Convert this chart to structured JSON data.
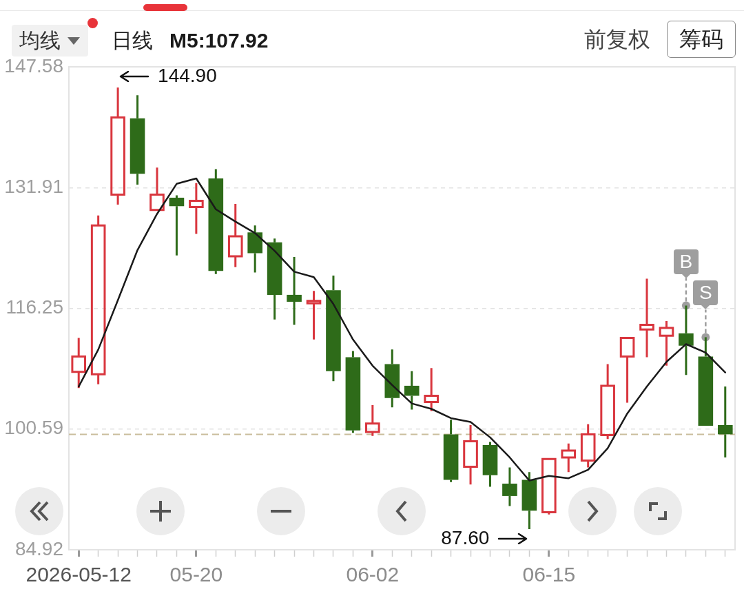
{
  "chart_data": {
    "type": "candlestick",
    "categories": [
      "2026-05-12",
      null,
      null,
      null,
      null,
      null,
      "05-20",
      null,
      null,
      null,
      null,
      null,
      null,
      null,
      null,
      "06-02",
      null,
      null,
      null,
      null,
      null,
      null,
      null,
      null,
      "06-15",
      null,
      null,
      null,
      null,
      null,
      null,
      null,
      null,
      null
    ],
    "ohlc": [
      [
        108.0,
        112.4,
        105.9,
        110.0
      ],
      [
        107.7,
        128.3,
        106.4,
        127.0
      ],
      [
        131.0,
        144.9,
        129.7,
        141.0
      ],
      [
        140.9,
        143.9,
        132.3,
        133.7
      ],
      [
        129.0,
        134.5,
        128.9,
        131.0
      ],
      [
        130.6,
        130.9,
        123.1,
        129.5
      ],
      [
        129.4,
        132.5,
        125.9,
        130.2
      ],
      [
        133.1,
        134.3,
        120.7,
        121.1
      ],
      [
        123.0,
        129.8,
        121.6,
        125.6
      ],
      [
        126.1,
        127.0,
        120.9,
        123.4
      ],
      [
        124.8,
        125.3,
        114.8,
        118.0
      ],
      [
        118.0,
        122.9,
        114.1,
        117.1
      ],
      [
        116.9,
        118.5,
        112.2,
        117.2
      ],
      [
        118.6,
        120.5,
        106.8,
        108.1
      ],
      [
        109.9,
        110.7,
        100.1,
        100.4
      ],
      [
        100.2,
        103.7,
        99.7,
        101.3
      ],
      [
        109.0,
        110.9,
        103.4,
        104.6
      ],
      [
        106.2,
        108.1,
        103.1,
        104.9
      ],
      [
        104.1,
        108.5,
        102.9,
        104.9
      ],
      [
        99.9,
        101.8,
        93.7,
        94.0
      ],
      [
        95.7,
        101.1,
        93.4,
        99.0
      ],
      [
        98.5,
        98.9,
        93.1,
        94.6
      ],
      [
        93.5,
        95.6,
        90.6,
        91.9
      ],
      [
        94.0,
        95.0,
        87.6,
        90.0
      ],
      [
        89.8,
        96.8,
        89.5,
        96.7
      ],
      [
        96.9,
        98.7,
        95.0,
        97.8
      ],
      [
        96.5,
        101.2,
        95.6,
        99.9
      ],
      [
        99.8,
        109.0,
        99.3,
        106.2
      ],
      [
        110.0,
        112.4,
        104.0,
        112.4
      ],
      [
        113.5,
        120.1,
        109.9,
        114.1
      ],
      [
        112.7,
        114.6,
        108.8,
        113.7
      ],
      [
        113.0,
        116.6,
        107.6,
        111.4
      ],
      [
        110.0,
        112.5,
        101.0,
        101.0
      ],
      [
        101.1,
        106.1,
        96.9,
        99.9
      ]
    ],
    "colors": [
      "#d9363e",
      "#d9363e",
      "#d9363e",
      "#2e6b19",
      "#d9363e",
      "#2e6b19",
      "#d9363e",
      "#2e6b19",
      "#d9363e",
      "#2e6b19",
      "#2e6b19",
      "#2e6b19",
      "#d9363e",
      "#2e6b19",
      "#2e6b19",
      "#d9363e",
      "#2e6b19",
      "#2e6b19",
      "#d9363e",
      "#2e6b19",
      "#d9363e",
      "#2e6b19",
      "#2e6b19",
      "#2e6b19",
      "#d9363e",
      "#d9363e",
      "#d9363e",
      "#d9363e",
      "#d9363e",
      "#d9363e",
      "#d9363e",
      "#2e6b19",
      "#2e6b19",
      "#2e6b19"
    ],
    "series": [
      {
        "name": "M5:107.92",
        "type": "line",
        "color": "#1a1a1a",
        "values": [
          106.1,
          110.9,
          117.3,
          123.8,
          128.5,
          132.4,
          133.1,
          129.1,
          127.5,
          126.0,
          123.7,
          121.0,
          120.3,
          116.8,
          112.2,
          108.8,
          106.3,
          103.9,
          103.2,
          102.0,
          101.5,
          99.5,
          96.9,
          93.9,
          94.5,
          94.2,
          95.3,
          98.1,
          102.6,
          106.1,
          109.3,
          111.6,
          110.5,
          107.92
        ]
      }
    ],
    "ylim": [
      84.92,
      147.58
    ],
    "yticks": [
      84.92,
      100.59,
      116.25,
      131.91,
      147.58
    ],
    "grid": "y",
    "legend": "top left",
    "marker": "none",
    "ref_lines": [
      {
        "axis": "y",
        "value": 99.9,
        "color": "#c9bd9c",
        "line_style": "dashed"
      }
    ],
    "annotations": [
      "均线",
      "日线",
      "前复权",
      "筹码",
      "144.90",
      "87.60",
      {
        "text": "B",
        "y": 116.6
      },
      {
        "text": "S",
        "y": 112.5
      }
    ]
  }
}
